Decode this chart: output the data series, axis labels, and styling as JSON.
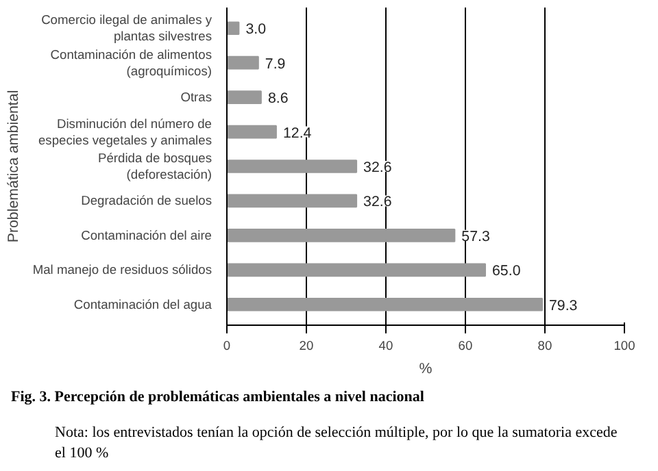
{
  "chart_data": {
    "type": "bar",
    "orientation": "horizontal",
    "categories": [
      "Comercio ilegal de animales y plantas silvestres",
      "Contaminación de alimentos (agroquímicos)",
      "Otras",
      "Disminución del número de especies vegetales y animales",
      "Pérdida de bosques (deforestación)",
      "Degradación de suelos",
      "Contaminación del aire",
      "Mal manejo de residuos sólidos",
      "Contaminación del agua"
    ],
    "values": [
      3.0,
      7.9,
      8.6,
      12.4,
      32.6,
      32.6,
      57.3,
      65.0,
      79.3
    ],
    "color": "#999999",
    "data_labels": true,
    "value_labels": [
      "3.0",
      "7.9",
      "8.6",
      "12.4",
      "32.6",
      "32.6",
      "57.3",
      "65.0",
      "79.3"
    ],
    "xlim": [
      0,
      100
    ],
    "xticks": [
      0,
      20,
      40,
      60,
      80,
      100
    ],
    "grid": "x",
    "xlabel": "%",
    "ylabel": "Problemática ambiental",
    "annotations": [
      "Fig. 3. Percepción de problemáticas ambientales a nivel nacional",
      "Nota: los entrevistados tenían la opción de selección múltiple, por lo que la sumatoria excede el 100 %"
    ]
  }
}
